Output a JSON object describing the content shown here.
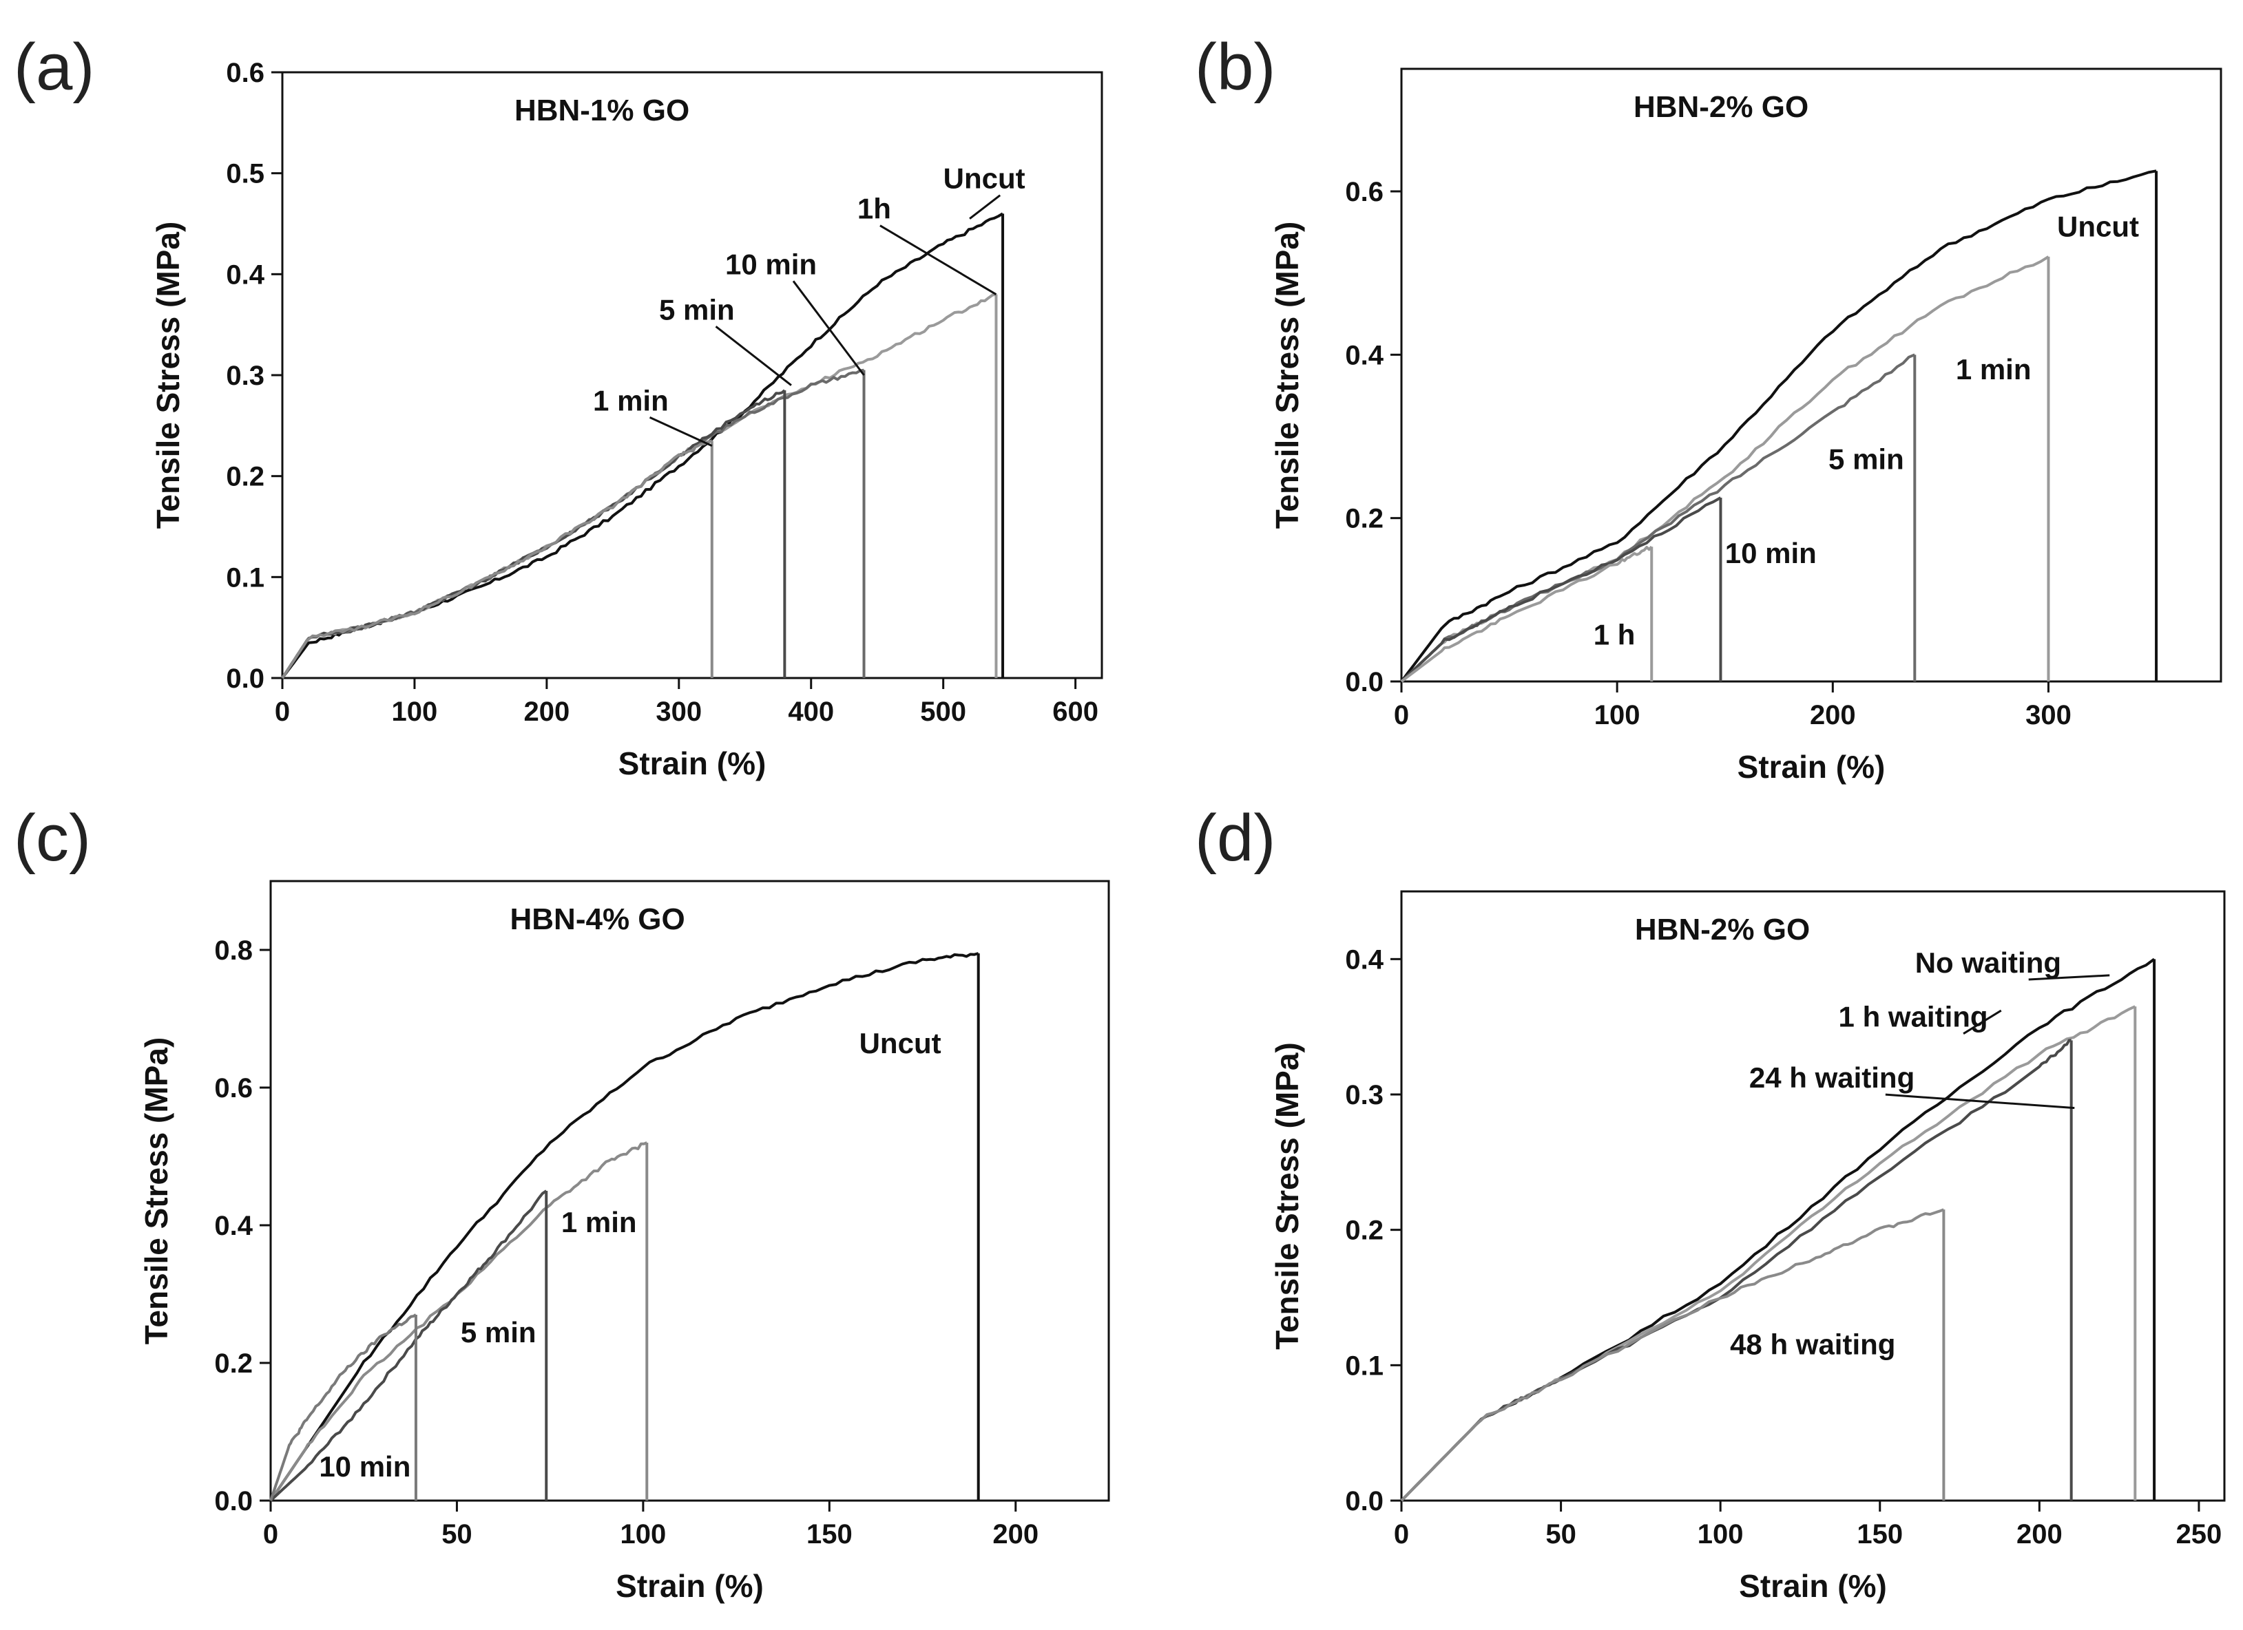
{
  "chart_data": [
    {
      "type": "line",
      "panel": "(a)",
      "title": "HBN-1% GO",
      "xlabel": "Strain (%)",
      "ylabel": "Tensile Stress (MPa)",
      "xlim": [
        0,
        620
      ],
      "ylim": [
        0,
        0.6
      ],
      "xticks": [
        0,
        100,
        200,
        300,
        400,
        500,
        600
      ],
      "yticks": [
        0.0,
        0.1,
        0.2,
        0.3,
        0.4,
        0.5,
        0.6
      ],
      "xtick_labels": [
        "0",
        "100",
        "200",
        "300",
        "400",
        "500",
        "600"
      ],
      "ytick_labels": [
        "0.0",
        "0.1",
        "0.2",
        "0.3",
        "0.4",
        "0.5",
        "0.6"
      ],
      "series": [
        {
          "name": "Uncut",
          "color": "#111111",
          "x": [
            0,
            20,
            60,
            100,
            150,
            200,
            250,
            300,
            350,
            400,
            450,
            500,
            545
          ],
          "y": [
            0,
            0.035,
            0.05,
            0.065,
            0.09,
            0.12,
            0.16,
            0.21,
            0.265,
            0.33,
            0.39,
            0.43,
            0.46
          ],
          "break_x": 545
        },
        {
          "name": "1h",
          "color": "#9a9a9a",
          "x": [
            0,
            20,
            60,
            100,
            150,
            200,
            250,
            300,
            350,
            400,
            450,
            500,
            540
          ],
          "y": [
            0,
            0.04,
            0.05,
            0.065,
            0.095,
            0.13,
            0.17,
            0.22,
            0.26,
            0.29,
            0.32,
            0.355,
            0.38
          ],
          "break_x": 540
        },
        {
          "name": "10 min",
          "color": "#6a6a6a",
          "x": [
            0,
            20,
            60,
            100,
            150,
            200,
            250,
            300,
            350,
            400,
            440
          ],
          "y": [
            0,
            0.04,
            0.05,
            0.065,
            0.095,
            0.13,
            0.17,
            0.22,
            0.26,
            0.29,
            0.305
          ],
          "break_x": 440
        },
        {
          "name": "5 min",
          "color": "#4a4a4a",
          "x": [
            0,
            20,
            60,
            100,
            150,
            200,
            250,
            300,
            350,
            380
          ],
          "y": [
            0,
            0.04,
            0.05,
            0.065,
            0.095,
            0.13,
            0.17,
            0.22,
            0.265,
            0.285
          ],
          "break_x": 380
        },
        {
          "name": "1 min",
          "color": "#8a8a8a",
          "x": [
            0,
            20,
            60,
            100,
            150,
            200,
            250,
            300,
            325
          ],
          "y": [
            0,
            0.04,
            0.05,
            0.065,
            0.095,
            0.13,
            0.17,
            0.22,
            0.235
          ],
          "break_x": 325
        }
      ],
      "annotations": [
        {
          "text": "Uncut",
          "x": 500,
          "y": 0.485,
          "tx": 520,
          "ty": 0.455
        },
        {
          "text": "1h",
          "x": 435,
          "y": 0.455,
          "tx": 540,
          "ty": 0.38
        },
        {
          "text": "10 min",
          "x": 335,
          "y": 0.4,
          "tx": 440,
          "ty": 0.3
        },
        {
          "text": "5 min",
          "x": 285,
          "y": 0.355,
          "tx": 385,
          "ty": 0.29
        },
        {
          "text": "1 min",
          "x": 235,
          "y": 0.265,
          "tx": 325,
          "ty": 0.23
        }
      ]
    },
    {
      "type": "line",
      "panel": "(b)",
      "title": "HBN-2% GO",
      "xlabel": "Strain (%)",
      "ylabel": "Tensile Stress (MPa)",
      "xlim": [
        0,
        380
      ],
      "ylim": [
        0,
        0.75
      ],
      "xticks": [
        0,
        100,
        200,
        300
      ],
      "yticks": [
        0.0,
        0.2,
        0.4,
        0.6
      ],
      "xtick_labels": [
        "0",
        "100",
        "200",
        "300"
      ],
      "ytick_labels": [
        "0.0",
        "0.2",
        "0.4",
        "0.6"
      ],
      "series": [
        {
          "name": "Uncut",
          "color": "#111111",
          "x": [
            0,
            20,
            50,
            100,
            150,
            200,
            250,
            300,
            350
          ],
          "y": [
            0,
            0.07,
            0.11,
            0.17,
            0.29,
            0.43,
            0.53,
            0.59,
            0.625
          ],
          "break_x": 350
        },
        {
          "name": "1 min",
          "color": "#9a9a9a",
          "x": [
            0,
            20,
            50,
            100,
            150,
            200,
            250,
            300
          ],
          "y": [
            0,
            0.05,
            0.09,
            0.15,
            0.25,
            0.37,
            0.46,
            0.52
          ],
          "break_x": 300
        },
        {
          "name": "5 min",
          "color": "#6a6a6a",
          "x": [
            0,
            20,
            50,
            100,
            150,
            200,
            238
          ],
          "y": [
            0,
            0.05,
            0.09,
            0.15,
            0.24,
            0.33,
            0.4
          ],
          "break_x": 238
        },
        {
          "name": "10 min",
          "color": "#4a4a4a",
          "x": [
            0,
            20,
            50,
            100,
            148
          ],
          "y": [
            0,
            0.05,
            0.09,
            0.15,
            0.225
          ],
          "break_x": 148
        },
        {
          "name": "1 h",
          "color": "#9a9a9a",
          "x": [
            0,
            20,
            50,
            100,
            116
          ],
          "y": [
            0,
            0.04,
            0.08,
            0.145,
            0.165
          ],
          "break_x": 116
        }
      ],
      "annotations": [
        {
          "text": "Uncut",
          "x": 304,
          "y": 0.545
        },
        {
          "text": "1 min",
          "x": 257,
          "y": 0.37
        },
        {
          "text": "5 min",
          "x": 198,
          "y": 0.26
        },
        {
          "text": "10 min",
          "x": 150,
          "y": 0.145
        },
        {
          "text": "1 h",
          "x": 89,
          "y": 0.045
        }
      ]
    },
    {
      "type": "line",
      "panel": "(c)",
      "title": "HBN-4% GO",
      "xlabel": "Strain (%)",
      "ylabel": "Tensile Stress (MPa)",
      "xlim": [
        0,
        225
      ],
      "ylim": [
        0,
        0.9
      ],
      "xticks": [
        0,
        50,
        100,
        150,
        200
      ],
      "yticks": [
        0.0,
        0.2,
        0.4,
        0.6,
        0.8
      ],
      "xtick_labels": [
        "0",
        "50",
        "100",
        "150",
        "200"
      ],
      "ytick_labels": [
        "0.0",
        "0.2",
        "0.4",
        "0.6",
        "0.8"
      ],
      "series": [
        {
          "name": "Uncut",
          "color": "#111111",
          "x": [
            0,
            25,
            50,
            75,
            100,
            125,
            150,
            175,
            190
          ],
          "y": [
            0,
            0.2,
            0.37,
            0.52,
            0.63,
            0.7,
            0.75,
            0.785,
            0.795
          ],
          "break_x": 190
        },
        {
          "name": "1 min",
          "color": "#8a8a8a",
          "x": [
            0,
            10,
            25,
            50,
            75,
            90,
            101
          ],
          "y": [
            0,
            0.08,
            0.18,
            0.3,
            0.43,
            0.49,
            0.52
          ],
          "break_x": 101
        },
        {
          "name": "5 min",
          "color": "#4a4a4a",
          "x": [
            0,
            10,
            25,
            40,
            50,
            60,
            74
          ],
          "y": [
            0,
            0.05,
            0.14,
            0.24,
            0.3,
            0.36,
            0.45
          ],
          "break_x": 74
        },
        {
          "name": "10 min",
          "color": "#7a7a7a",
          "x": [
            0,
            5,
            10,
            20,
            30,
            39
          ],
          "y": [
            0,
            0.08,
            0.12,
            0.19,
            0.24,
            0.27
          ],
          "break_x": 39
        }
      ],
      "annotations": [
        {
          "text": "Uncut",
          "x": 158,
          "y": 0.65
        },
        {
          "text": "1 min",
          "x": 78,
          "y": 0.39
        },
        {
          "text": "5 min",
          "x": 51,
          "y": 0.23
        },
        {
          "text": "10 min",
          "x": 13,
          "y": 0.035
        }
      ]
    },
    {
      "type": "line",
      "panel": "(d)",
      "title": "HBN-2% GO",
      "xlabel": "Strain (%)",
      "ylabel": "Tensile Stress (MPa)",
      "xlim": [
        0,
        258
      ],
      "ylim": [
        0,
        0.45
      ],
      "xticks": [
        0,
        50,
        100,
        150,
        200,
        250
      ],
      "yticks": [
        0.0,
        0.1,
        0.2,
        0.3,
        0.4
      ],
      "xtick_labels": [
        "0",
        "50",
        "100",
        "150",
        "200",
        "250"
      ],
      "ytick_labels": [
        "0.0",
        "0.1",
        "0.2",
        "0.3",
        "0.4"
      ],
      "series": [
        {
          "name": "No waiting",
          "color": "#111111",
          "x": [
            0,
            25,
            50,
            100,
            150,
            200,
            236
          ],
          "y": [
            0,
            0.06,
            0.09,
            0.16,
            0.26,
            0.35,
            0.4
          ],
          "break_x": 236
        },
        {
          "name": "1 h waiting",
          "color": "#9a9a9a",
          "x": [
            0,
            25,
            50,
            100,
            150,
            200,
            230
          ],
          "y": [
            0,
            0.06,
            0.09,
            0.155,
            0.25,
            0.33,
            0.365
          ],
          "break_x": 230
        },
        {
          "name": "24 h waiting",
          "color": "#4a4a4a",
          "x": [
            0,
            25,
            50,
            100,
            150,
            200,
            210
          ],
          "y": [
            0,
            0.06,
            0.09,
            0.15,
            0.24,
            0.32,
            0.34
          ],
          "break_x": 210
        },
        {
          "name": "48 h waiting",
          "color": "#8a8a8a",
          "x": [
            0,
            25,
            50,
            100,
            130,
            150,
            170
          ],
          "y": [
            0,
            0.06,
            0.09,
            0.15,
            0.18,
            0.2,
            0.215
          ],
          "break_x": 170
        }
      ],
      "annotations": [
        {
          "text": "No waiting",
          "x": 161,
          "y": 0.39,
          "tx": 222,
          "ty": 0.388
        },
        {
          "text": "1 h waiting",
          "x": 137,
          "y": 0.35,
          "tx": 188,
          "ty": 0.362
        },
        {
          "text": "24 h waiting",
          "x": 109,
          "y": 0.305,
          "tx": 211,
          "ty": 0.29
        },
        {
          "text": "48 h waiting",
          "x": 103,
          "y": 0.108
        }
      ]
    }
  ]
}
